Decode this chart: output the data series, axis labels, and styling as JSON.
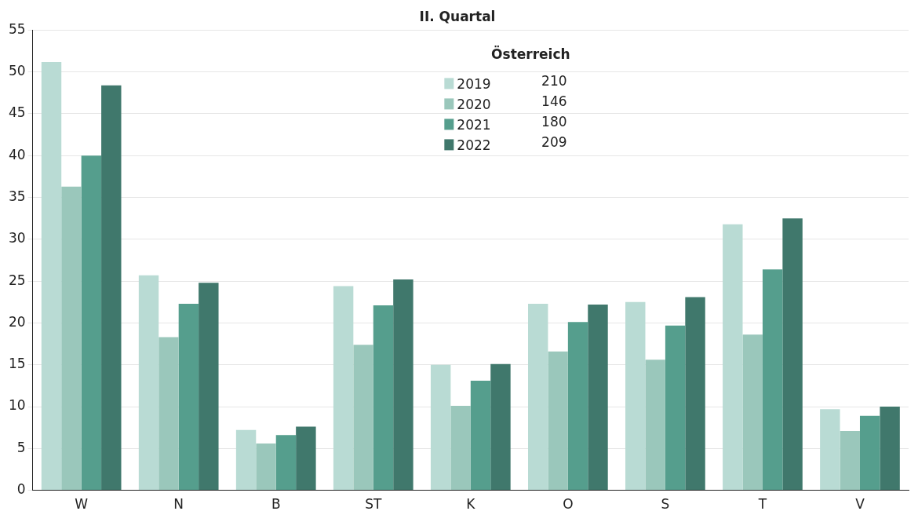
{
  "chart_data": {
    "type": "bar",
    "title": "II. Quartal",
    "legend_title": "Österreich",
    "legend": "top",
    "categories": [
      "W",
      "N",
      "B",
      "ST",
      "K",
      "O",
      "S",
      "T",
      "V"
    ],
    "series": [
      {
        "name": "2019",
        "color": "#b9dbd4",
        "values": [
          51.2,
          25.7,
          7.2,
          24.4,
          15.0,
          22.3,
          22.5,
          31.8,
          9.7
        ]
      },
      {
        "name": "2020",
        "color": "#9ac7bb",
        "values": [
          36.3,
          18.3,
          5.6,
          17.4,
          10.1,
          16.6,
          15.6,
          18.6,
          7.1
        ]
      },
      {
        "name": "2021",
        "color": "#559e8d",
        "values": [
          40.0,
          22.3,
          6.6,
          22.1,
          13.1,
          20.1,
          19.7,
          26.4,
          8.9
        ]
      },
      {
        "name": "2022",
        "color": "#40786c",
        "values": [
          48.4,
          24.8,
          7.6,
          25.2,
          15.1,
          22.2,
          23.1,
          32.5,
          10.0
        ]
      }
    ],
    "annotations": [
      "210",
      "146",
      "180",
      "209"
    ],
    "ylim": [
      0,
      55
    ],
    "yticks": [
      0,
      5,
      10,
      15,
      20,
      25,
      30,
      35,
      40,
      45,
      50,
      55
    ],
    "grid": "y"
  }
}
